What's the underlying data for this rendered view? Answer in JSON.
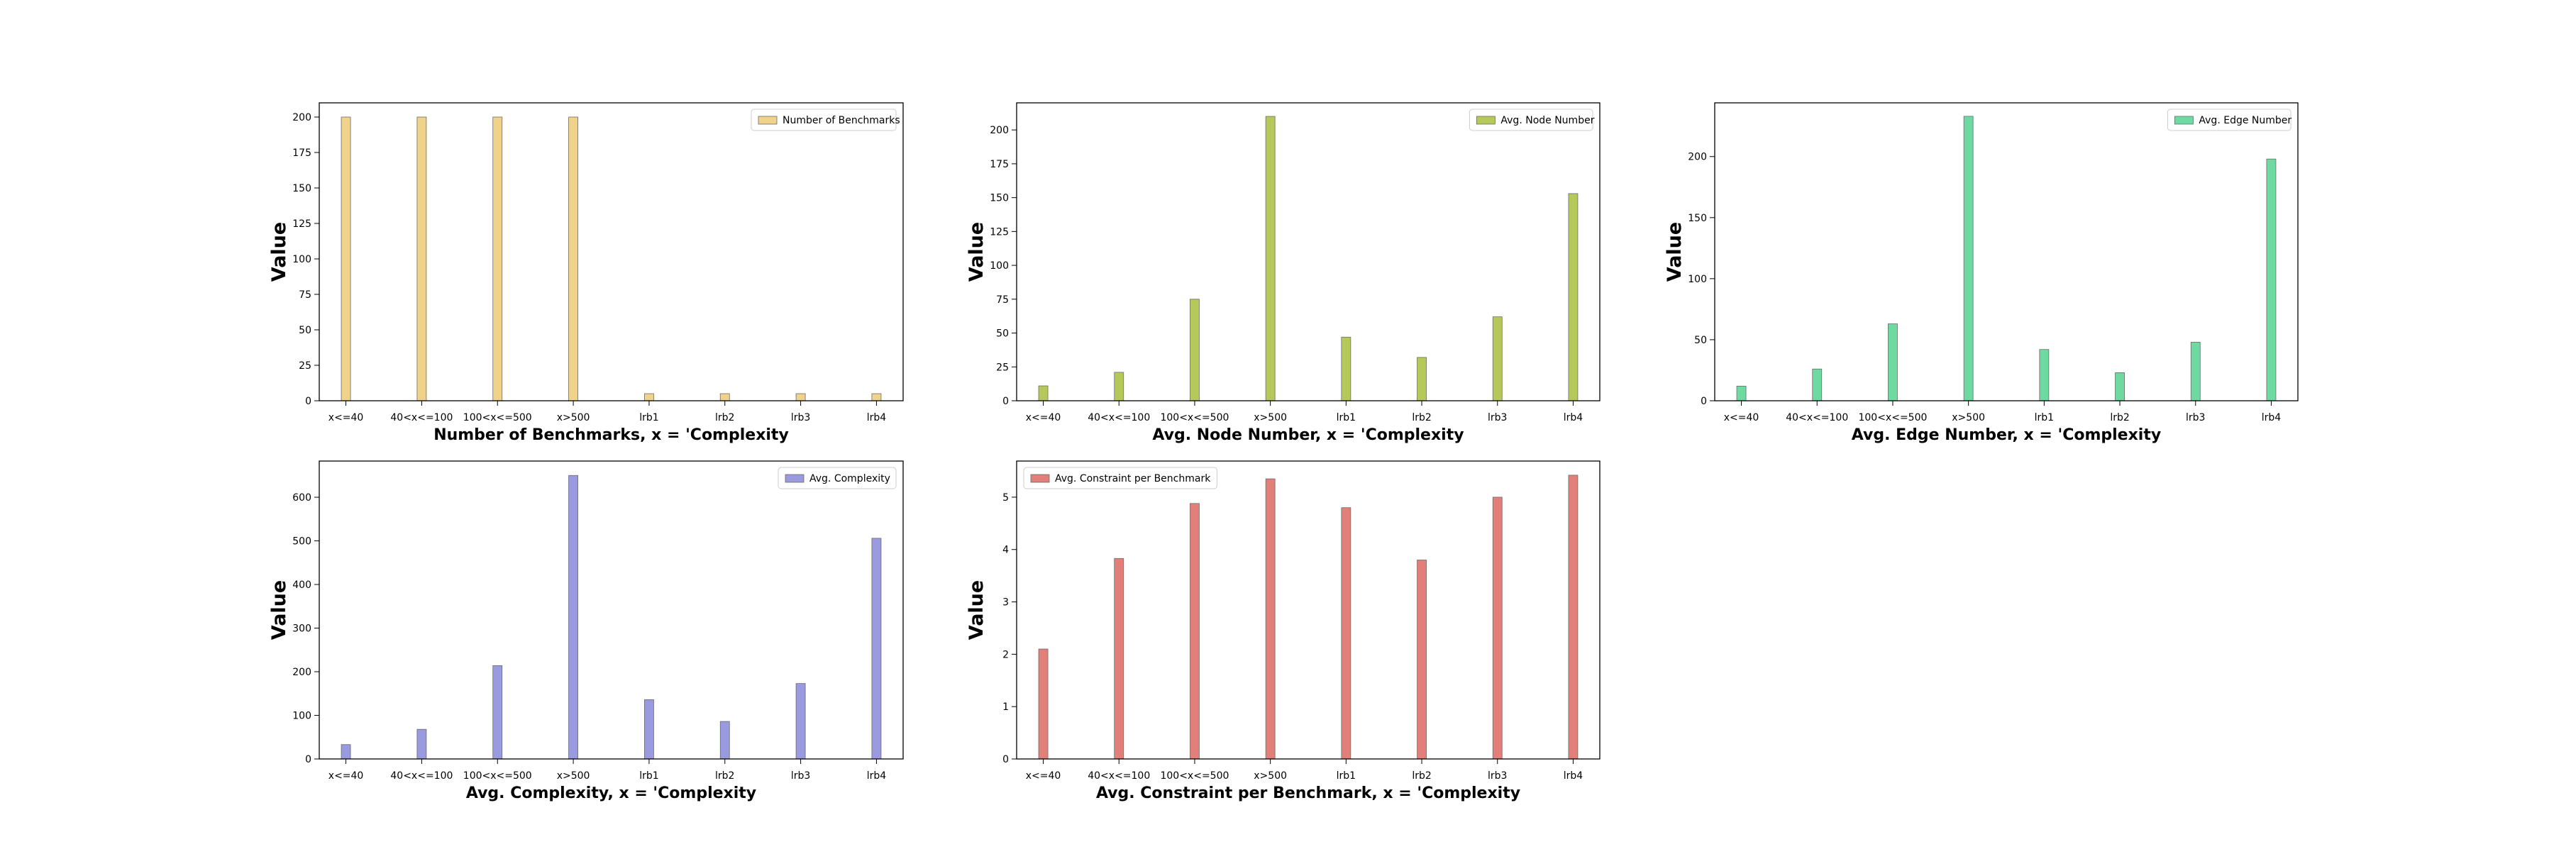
{
  "figure": {
    "ylabel": "Value",
    "categories": [
      "x<=40",
      "40<x<=100",
      "100<x<=500",
      "x>500",
      "lrb1",
      "lrb2",
      "lrb3",
      "lrb4"
    ]
  },
  "chart_data": [
    {
      "type": "bar",
      "title": "",
      "xlabel": "Number of Benchmarks, x = 'Complexity",
      "ylabel": "Value",
      "categories": [
        "x<=40",
        "40<x<=100",
        "100<x<=500",
        "x>500",
        "lrb1",
        "lrb2",
        "lrb3",
        "lrb4"
      ],
      "series": [
        {
          "name": "Number of Benchmarks",
          "values": [
            200,
            200,
            200,
            200,
            5,
            5,
            5,
            5
          ],
          "color": "#f0d28a"
        }
      ],
      "ylim": [
        0,
        210
      ],
      "yticks": [
        0,
        25,
        50,
        75,
        100,
        125,
        150,
        175,
        200
      ],
      "legend": "top-right",
      "grid": false
    },
    {
      "type": "bar",
      "title": "",
      "xlabel": "Avg. Node Number, x = 'Complexity",
      "ylabel": "Value",
      "categories": [
        "x<=40",
        "40<x<=100",
        "100<x<=500",
        "x>500",
        "lrb1",
        "lrb2",
        "lrb3",
        "lrb4"
      ],
      "series": [
        {
          "name": "Avg. Node Number",
          "values": [
            11,
            21,
            75,
            210,
            47,
            32,
            62,
            153
          ],
          "color": "#b5c95a"
        }
      ],
      "ylim": [
        0,
        220
      ],
      "yticks": [
        0,
        25,
        50,
        75,
        100,
        125,
        150,
        175,
        200
      ],
      "legend": "top-right",
      "grid": false
    },
    {
      "type": "bar",
      "title": "",
      "xlabel": "Avg. Edge Number, x = 'Complexity",
      "ylabel": "Value",
      "categories": [
        "x<=40",
        "40<x<=100",
        "100<x<=500",
        "x>500",
        "lrb1",
        "lrb2",
        "lrb3",
        "lrb4"
      ],
      "series": [
        {
          "name": "Avg. Edge Number",
          "values": [
            12,
            26,
            63,
            233,
            42,
            23,
            48,
            198
          ],
          "color": "#6ed9a0"
        }
      ],
      "ylim": [
        0,
        244
      ],
      "yticks": [
        0,
        50,
        100,
        150,
        200
      ],
      "legend": "top-right",
      "grid": false
    },
    {
      "type": "bar",
      "title": "",
      "xlabel": "Avg. Complexity, x = 'Complexity",
      "ylabel": "Value",
      "categories": [
        "x<=40",
        "40<x<=100",
        "100<x<=500",
        "x>500",
        "lrb1",
        "lrb2",
        "lrb3",
        "lrb4"
      ],
      "series": [
        {
          "name": "Avg. Complexity",
          "values": [
            33,
            68,
            214,
            650,
            136,
            86,
            173,
            506
          ],
          "color": "#9a9ae0"
        }
      ],
      "ylim": [
        0,
        683
      ],
      "yticks": [
        0,
        100,
        200,
        300,
        400,
        500,
        600
      ],
      "legend": "top-right",
      "grid": false
    },
    {
      "type": "bar",
      "title": "",
      "xlabel": "Avg. Constraint per Benchmark, x = 'Complexity",
      "ylabel": "Value",
      "categories": [
        "x<=40",
        "40<x<=100",
        "100<x<=500",
        "x>500",
        "lrb1",
        "lrb2",
        "lrb3",
        "lrb4"
      ],
      "series": [
        {
          "name": "Avg. Constraint per Benchmark",
          "values": [
            2.1,
            3.83,
            4.88,
            5.35,
            4.8,
            3.8,
            5.0,
            5.42
          ],
          "color": "#e27f78"
        }
      ],
      "ylim": [
        0,
        5.69
      ],
      "yticks": [
        0,
        1,
        2,
        3,
        4,
        5
      ],
      "legend": "top-left",
      "grid": false
    }
  ]
}
